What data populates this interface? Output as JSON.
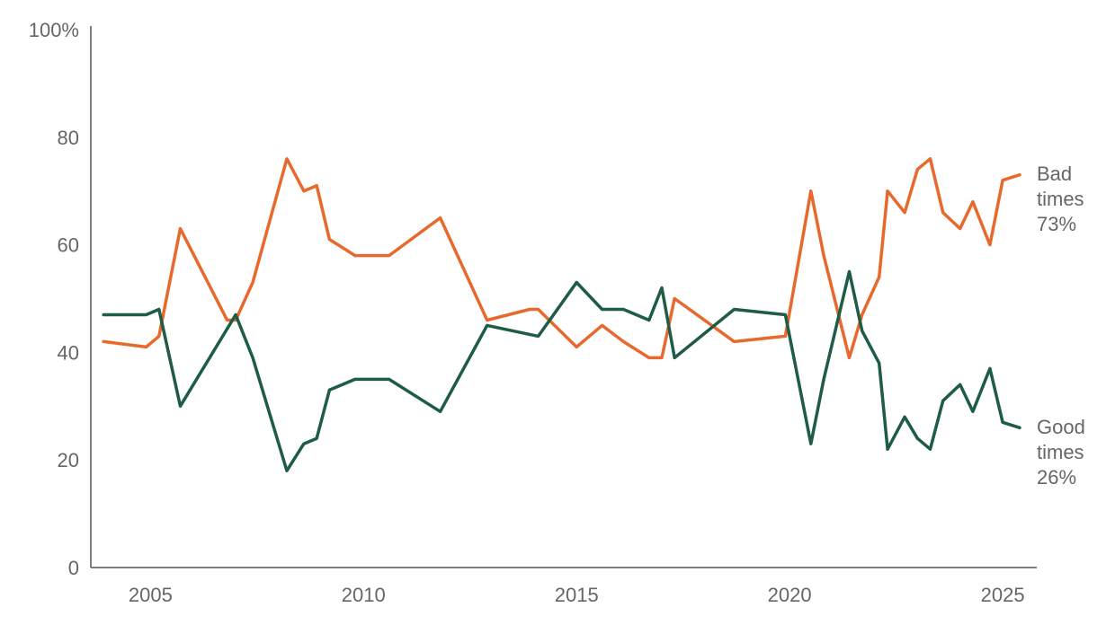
{
  "chart_data": {
    "type": "line",
    "title": "",
    "xlabel": "",
    "ylabel": "",
    "xlim": [
      2003.6,
      2025.8
    ],
    "ylim": [
      0,
      100
    ],
    "x_ticks": [
      2005,
      2010,
      2015,
      2020,
      2025
    ],
    "x_tick_labels": [
      "2005",
      "2010",
      "2015",
      "2020",
      "2025"
    ],
    "y_ticks": [
      0,
      20,
      40,
      60,
      80,
      100
    ],
    "y_tick_labels": [
      "0",
      "20",
      "40",
      "60",
      "80",
      "100%"
    ],
    "grid": false,
    "series": [
      {
        "key": "bad",
        "label_lines": [
          "Bad",
          "times",
          "73%"
        ],
        "color": "#E8692D",
        "points": [
          [
            2003.9,
            42
          ],
          [
            2004.9,
            41
          ],
          [
            2005.2,
            43
          ],
          [
            2005.7,
            63
          ],
          [
            2006.8,
            46
          ],
          [
            2007.0,
            46
          ],
          [
            2007.4,
            53
          ],
          [
            2008.2,
            76
          ],
          [
            2008.6,
            70
          ],
          [
            2008.9,
            71
          ],
          [
            2009.2,
            61
          ],
          [
            2009.8,
            58
          ],
          [
            2010.6,
            58
          ],
          [
            2011.8,
            65
          ],
          [
            2012.9,
            46
          ],
          [
            2013.9,
            48
          ],
          [
            2014.1,
            48
          ],
          [
            2015.0,
            41
          ],
          [
            2015.6,
            45
          ],
          [
            2016.1,
            42
          ],
          [
            2016.7,
            39
          ],
          [
            2017.0,
            39
          ],
          [
            2017.3,
            50
          ],
          [
            2018.7,
            42
          ],
          [
            2019.9,
            43
          ],
          [
            2020.5,
            70
          ],
          [
            2020.8,
            58
          ],
          [
            2021.4,
            39
          ],
          [
            2021.7,
            47
          ],
          [
            2022.1,
            54
          ],
          [
            2022.3,
            70
          ],
          [
            2022.7,
            66
          ],
          [
            2023.0,
            74
          ],
          [
            2023.3,
            76
          ],
          [
            2023.6,
            66
          ],
          [
            2024.0,
            63
          ],
          [
            2024.3,
            68
          ],
          [
            2024.7,
            60
          ],
          [
            2025.0,
            72
          ],
          [
            2025.4,
            73
          ]
        ]
      },
      {
        "key": "good",
        "label_lines": [
          "Good",
          "times",
          "26%"
        ],
        "color": "#1E5C45",
        "points": [
          [
            2003.9,
            47
          ],
          [
            2004.9,
            47
          ],
          [
            2005.2,
            48
          ],
          [
            2005.7,
            30
          ],
          [
            2007.0,
            47
          ],
          [
            2007.4,
            39
          ],
          [
            2008.2,
            18
          ],
          [
            2008.6,
            23
          ],
          [
            2008.9,
            24
          ],
          [
            2009.2,
            33
          ],
          [
            2009.8,
            35
          ],
          [
            2010.6,
            35
          ],
          [
            2011.8,
            29
          ],
          [
            2012.9,
            45
          ],
          [
            2014.1,
            43
          ],
          [
            2015.0,
            53
          ],
          [
            2015.6,
            48
          ],
          [
            2016.1,
            48
          ],
          [
            2016.7,
            46
          ],
          [
            2017.0,
            52
          ],
          [
            2017.3,
            39
          ],
          [
            2018.7,
            48
          ],
          [
            2019.9,
            47
          ],
          [
            2020.5,
            23
          ],
          [
            2020.8,
            35
          ],
          [
            2021.4,
            55
          ],
          [
            2021.7,
            44
          ],
          [
            2022.1,
            38
          ],
          [
            2022.3,
            22
          ],
          [
            2022.7,
            28
          ],
          [
            2023.0,
            24
          ],
          [
            2023.3,
            22
          ],
          [
            2023.6,
            31
          ],
          [
            2024.0,
            34
          ],
          [
            2024.3,
            29
          ],
          [
            2024.7,
            37
          ],
          [
            2025.0,
            27
          ],
          [
            2025.4,
            26
          ]
        ]
      }
    ]
  }
}
